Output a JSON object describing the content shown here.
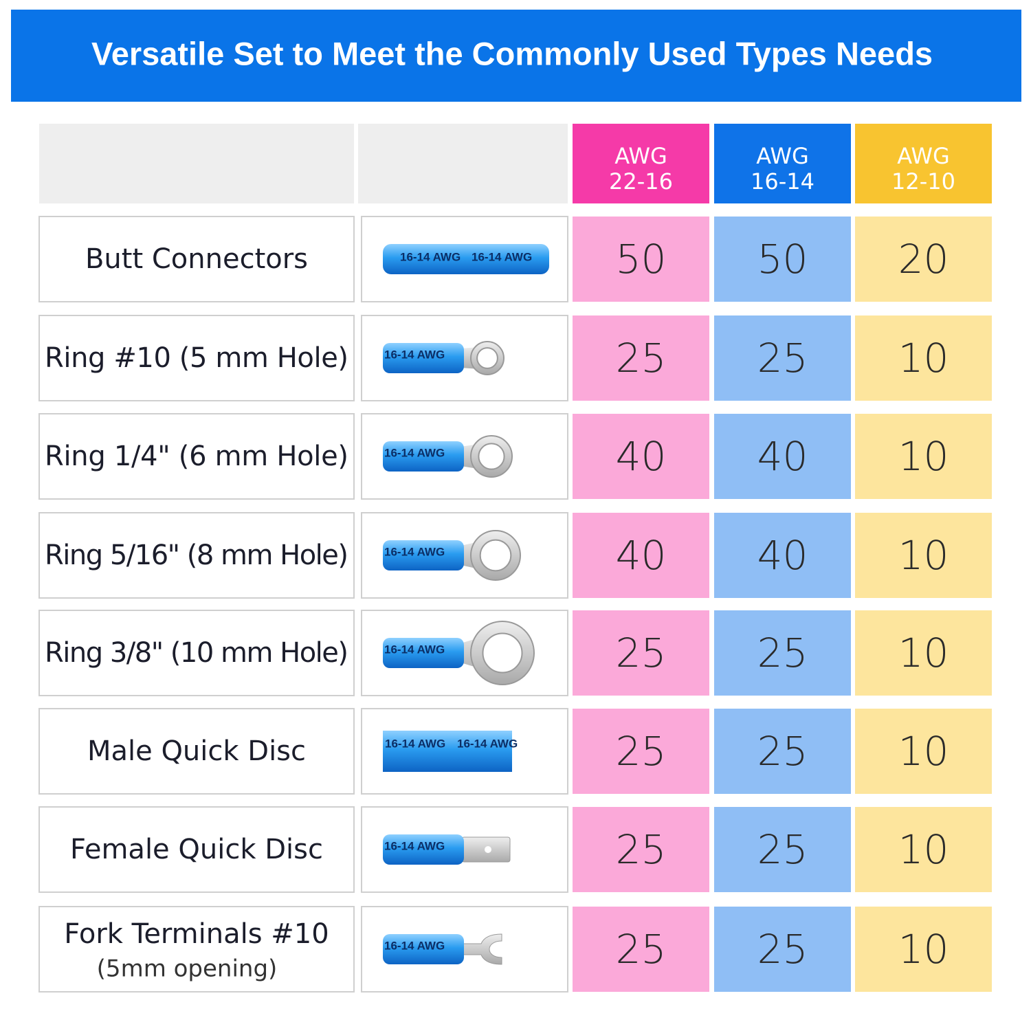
{
  "header": {
    "title": "Versatile Set to Meet the Commonly Used Types Needs"
  },
  "connector_print": "16-14 AWG",
  "table": {
    "columns": [
      {
        "label": "AWG",
        "range": "22-16",
        "color": "#f53aa8",
        "cell_color": "#fba9d9"
      },
      {
        "label": "AWG",
        "range": "16-14",
        "color": "#0f73e8",
        "cell_color": "#8fbef5"
      },
      {
        "label": "AWG",
        "range": "12-10",
        "color": "#f8c430",
        "cell_color": "#fde59d"
      }
    ],
    "rows": [
      {
        "name": "Butt Connectors",
        "counts": [
          50,
          50,
          20
        ]
      },
      {
        "name": "Ring #10 (5 mm Hole)",
        "counts": [
          25,
          25,
          10
        ]
      },
      {
        "name": "Ring 1/4\" (6 mm Hole)",
        "counts": [
          40,
          40,
          10
        ]
      },
      {
        "name": "Ring 5/16\" (8 mm Hole)",
        "counts": [
          40,
          40,
          10
        ]
      },
      {
        "name": "Ring 3/8\" (10 mm Hole)",
        "counts": [
          25,
          25,
          10
        ]
      },
      {
        "name": "Male Quick Disc",
        "counts": [
          25,
          25,
          10
        ]
      },
      {
        "name": "Female Quick Disc",
        "counts": [
          25,
          25,
          10
        ]
      },
      {
        "name": "Fork Terminals #10",
        "note": "(5mm opening)",
        "counts": [
          25,
          25,
          10
        ]
      }
    ]
  }
}
